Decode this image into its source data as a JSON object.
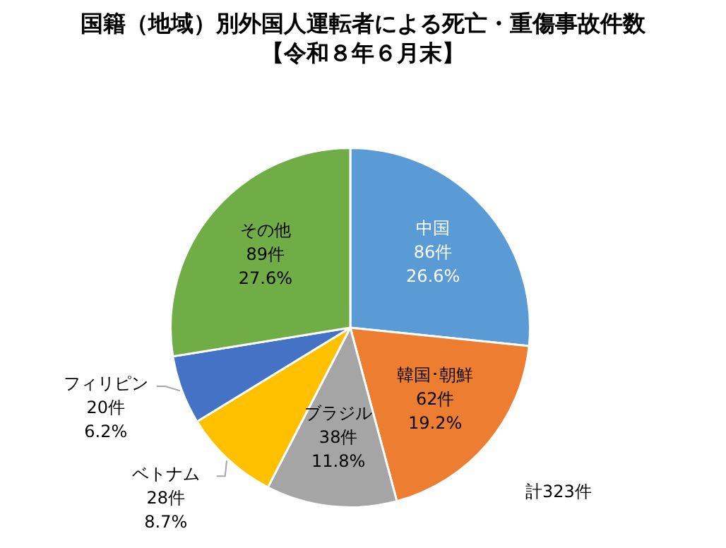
{
  "chart_data": {
    "type": "pie",
    "title": "国籍（地域）別外国人運転者による死亡・重傷事故件数",
    "subtitle": "【令和８年６月末】",
    "categories": [
      "中国",
      "韓国･朝鮮",
      "ブラジル",
      "ベトナム",
      "フィリピン",
      "その他"
    ],
    "values": [
      86,
      62,
      38,
      28,
      20,
      89
    ],
    "value_labels": [
      "86件\n26.6%",
      "62件\n19.2%",
      "38件\n11.8%",
      "28件\n8.7%",
      "20件\n6.2%",
      "89件\n27.6%"
    ],
    "colors": [
      "#5b9bd5",
      "#ed7d31",
      "#a5a5a5",
      "#ffc000",
      "#4472c4",
      "#70ad47"
    ],
    "annotations": [
      "計323件"
    ],
    "legend": false
  }
}
